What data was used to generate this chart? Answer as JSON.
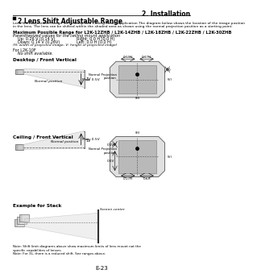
{
  "title_section": "2. Installation",
  "section_title": "2 Lens Shift Adjustable Range",
  "bg_color": "#ffffff",
  "text_color": "#000000",
  "gray_fill": "#cccccc",
  "light_gray": "#e0e0e0",
  "dark_gray": "#888888",
  "desc1": "Lens Shift Adjustable Range for Desktop and Ceiling Mount Application The diagram below shows the location of the image position",
  "desc2": "in the lens. The lens can be shifted within the shaded area as shown using the normal projection position as a starting point.",
  "max_range_title": "Maximum Possible Range for L2K-12ZHB / L2K-14ZHB / L2K-18ZHB / L2K-22ZHB / L2K-30ZHB",
  "parenthesized": "Parenthesized values for the ceiling mount application",
  "up": "Up: 0.26 V (0.14 V)",
  "down": "Down: 0.14 V (0.26V)",
  "right": "Right: 0.0 H (0.0 H)",
  "left": "Left: 0.0 H (0.0 H)",
  "hw_note": "(H: width of projected image, V: height of projected image)",
  "for_l2k": "For L2K-10F",
  "no_shift": "No shift available.",
  "desktop_label": "Desktop / Front Vertical",
  "ceiling_label": "Ceiling / Front Vertical",
  "stack_label": "Example for Stack",
  "normal_pos": "Normal position",
  "normal_proj": "Normal Projection\nposition",
  "max05v": "Max. 0.5V",
  "one_v": "1V",
  "screen_center": "Screen center",
  "note1": "Note: Shift limit diagrams above show maximum limits of lens mount not the",
  "note2": "specific capabilities of lenses.",
  "note3": "Note: For 3L, there is a reduced shift. See ranges above.",
  "page": "E-23"
}
